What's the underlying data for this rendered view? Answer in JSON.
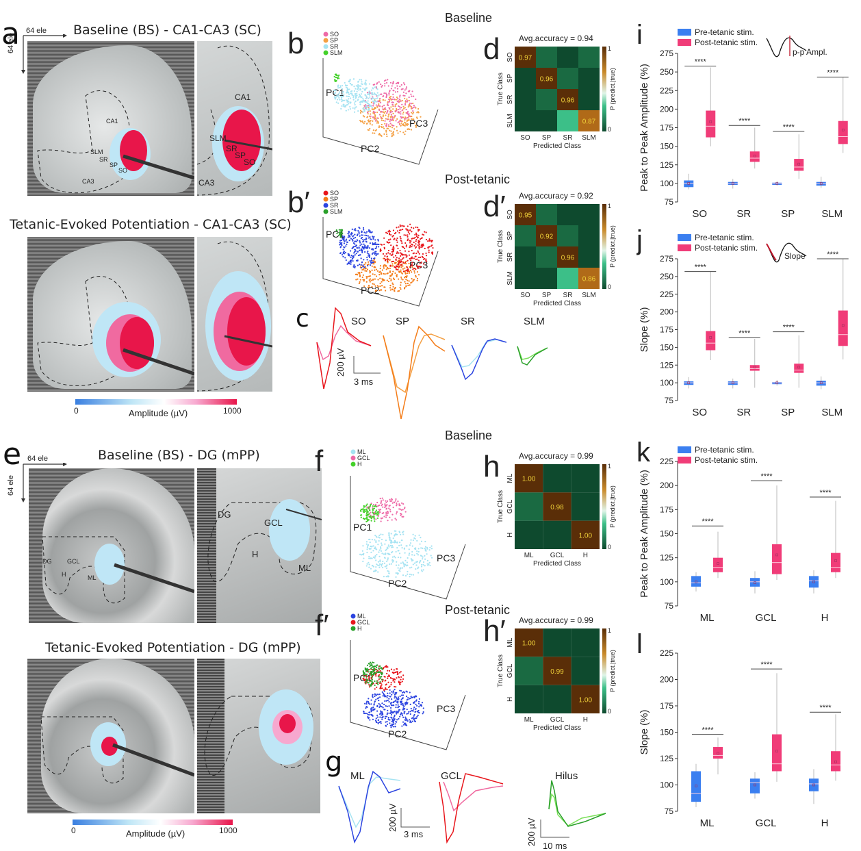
{
  "panels": {
    "a": {
      "label": "a",
      "title_top": "Baseline (BS) - CA1-CA3 (SC)",
      "title_bottom": "Tetanic-Evoked Potentiation - CA1-CA3 (SC)",
      "axis_h": "64 ele",
      "axis_v": "64 ele",
      "regions_left": [
        "CA1",
        "SLM",
        "SR",
        "SP",
        "SO",
        "CA3"
      ],
      "regions_right": [
        "CA1",
        "SLM",
        "SR",
        "SP",
        "SO",
        "CA3"
      ],
      "colorbar": {
        "min": "0",
        "max": "1000",
        "label": "Amplitude (µV)",
        "colors": [
          "#3a7fe0",
          "#bfe6f6",
          "#ffffff",
          "#f7a8cf",
          "#e8164a"
        ]
      }
    },
    "e": {
      "label": "e",
      "title_top": "Baseline (BS) - DG (mPP)",
      "title_bottom": "Tetanic-Evoked Potentiation - DG (mPP)",
      "axis_h": "64 ele",
      "axis_v": "64 ele",
      "regions": [
        "DG",
        "GCL",
        "H",
        "ML"
      ],
      "colorbar": {
        "min": "0",
        "max": "1000",
        "label": "Amplitude (µV)"
      }
    },
    "section_baseline": "Baseline",
    "section_post": "Post-tetanic",
    "section_baseline_dg": "Baseline",
    "section_post_dg": "Post-tetanic",
    "b": {
      "label": "b",
      "axes": [
        "PC1",
        "PC2",
        "PC3"
      ],
      "legend": [
        {
          "name": "SO",
          "color": "#ee6aa7"
        },
        {
          "name": "SP",
          "color": "#f4a044"
        },
        {
          "name": "SR",
          "color": "#a6e3f2"
        },
        {
          "name": "SLM",
          "color": "#44d12a"
        }
      ]
    },
    "b_prime": {
      "label": "b′",
      "axes": [
        "PC1",
        "PC2",
        "PC3"
      ],
      "legend": [
        {
          "name": "SO",
          "color": "#e8161c"
        },
        {
          "name": "SP",
          "color": "#f47c18"
        },
        {
          "name": "SR",
          "color": "#2c44e0"
        },
        {
          "name": "SLM",
          "color": "#2aa02a"
        }
      ]
    },
    "f": {
      "label": "f",
      "axes": [
        "PC1",
        "PC2",
        "PC3"
      ],
      "legend": [
        {
          "name": "ML",
          "color": "#a6e3f2"
        },
        {
          "name": "GCL",
          "color": "#ee6aa7"
        },
        {
          "name": "H",
          "color": "#44d12a"
        }
      ]
    },
    "f_prime": {
      "label": "f′",
      "axes": [
        "PC1",
        "PC2",
        "PC3"
      ],
      "legend": [
        {
          "name": "ML",
          "color": "#2c44e0"
        },
        {
          "name": "GCL",
          "color": "#e8161c"
        },
        {
          "name": "H",
          "color": "#2aa02a"
        }
      ]
    },
    "c": {
      "label": "c",
      "traces": [
        "SO",
        "SP",
        "SR",
        "SLM"
      ],
      "scale_v": "200 µV",
      "scale_h": "3 ms"
    },
    "g": {
      "label": "g",
      "traces": [
        "ML",
        "GCL",
        "Hilus"
      ],
      "scale1_v": "200 µV",
      "scale1_h": "3 ms",
      "scale2_v": "200 µV",
      "scale2_h": "10 ms"
    },
    "inset_i": "p-p Ampl.",
    "inset_j": "Slope"
  },
  "chart_data": [
    {
      "id": "d",
      "label": "d",
      "type": "heatmap",
      "title": "Avg.accuracy = 0.94",
      "xlabel": "Predicted Class",
      "ylabel": "True Class",
      "colorbar_label": "P (predict.|true)",
      "colorbar_ticks": [
        "0",
        "1"
      ],
      "categories": [
        "SO",
        "SP",
        "SR",
        "SLM"
      ],
      "matrix": [
        [
          0.97,
          0.02,
          0.0,
          0.01
        ],
        [
          0.0,
          0.96,
          0.04,
          0.0
        ],
        [
          0.0,
          0.04,
          0.96,
          0.0
        ],
        [
          0.0,
          0.0,
          0.13,
          0.87
        ]
      ],
      "annotations": [
        "0.97",
        "0.96",
        "0.96",
        "0.87"
      ]
    },
    {
      "id": "d_prime",
      "label": "d′",
      "type": "heatmap",
      "title": "Avg.accuracy = 0.92",
      "xlabel": "Predicted Class",
      "ylabel": "True Class",
      "colorbar_label": "P (predict.|true)",
      "colorbar_ticks": [
        "0",
        "1"
      ],
      "categories": [
        "SO",
        "SP",
        "SR",
        "SLM"
      ],
      "matrix": [
        [
          0.95,
          0.05,
          0.0,
          0.0
        ],
        [
          0.04,
          0.92,
          0.04,
          0.0
        ],
        [
          0.0,
          0.04,
          0.96,
          0.0
        ],
        [
          0.0,
          0.0,
          0.14,
          0.86
        ]
      ],
      "annotations": [
        "0.95",
        "0.92",
        "0.96",
        "0.86"
      ]
    },
    {
      "id": "h",
      "label": "h",
      "type": "heatmap",
      "title": "Avg.accuracy = 0.99",
      "xlabel": "Predicted Class",
      "ylabel": "True Class",
      "colorbar_label": "P (predict.|true)",
      "colorbar_ticks": [
        "0",
        "1"
      ],
      "categories": [
        "ML",
        "GCL",
        "H"
      ],
      "matrix": [
        [
          1.0,
          0.0,
          0.0
        ],
        [
          0.02,
          0.98,
          0.0
        ],
        [
          0.0,
          0.0,
          1.0
        ]
      ],
      "annotations": [
        "1.00",
        "0.98",
        "1.00"
      ]
    },
    {
      "id": "h_prime",
      "label": "h′",
      "type": "heatmap",
      "title": "Avg.accuracy = 0.99",
      "xlabel": "Predicted Class",
      "ylabel": "True Class",
      "colorbar_label": "P (predict.|true)",
      "colorbar_ticks": [
        "0",
        "1"
      ],
      "categories": [
        "ML",
        "GCL",
        "H"
      ],
      "matrix": [
        [
          1.0,
          0.0,
          0.0
        ],
        [
          0.01,
          0.99,
          0.0
        ],
        [
          0.0,
          0.0,
          1.0
        ]
      ],
      "annotations": [
        "1.00",
        "0.99",
        "1.00"
      ]
    },
    {
      "id": "i",
      "label": "i",
      "type": "box",
      "ylabel": "Peak to Peak Amplitude (%)",
      "ylim": [
        75,
        275
      ],
      "yticks": [
        75,
        100,
        125,
        150,
        175,
        200,
        225,
        250,
        275
      ],
      "categories": [
        "SO",
        "SR",
        "SP",
        "SLM"
      ],
      "legend": [
        {
          "name": "Pre-tetanic stim.",
          "color": "#3b7ff0"
        },
        {
          "name": "Post-tetanic stim.",
          "color": "#f03c78"
        }
      ],
      "significance": "****",
      "series": [
        {
          "name": "Pre-tetanic stim.",
          "boxes": [
            {
              "min": 92,
              "q1": 95,
              "median": 100,
              "q3": 104,
              "max": 113,
              "mean": 100
            },
            {
              "min": 93,
              "q1": 98,
              "median": 100,
              "q3": 102,
              "max": 106,
              "mean": 100
            },
            {
              "min": 97,
              "q1": 98,
              "median": 100,
              "q3": 101,
              "max": 103,
              "mean": 100
            },
            {
              "min": 94,
              "q1": 97,
              "median": 100,
              "q3": 102,
              "max": 109,
              "mean": 100
            }
          ]
        },
        {
          "name": "Post-tetanic stim.",
          "boxes": [
            {
              "min": 150,
              "q1": 162,
              "median": 177,
              "q3": 198,
              "max": 256,
              "mean": 183
            },
            {
              "min": 120,
              "q1": 129,
              "median": 134,
              "q3": 143,
              "max": 175,
              "mean": 137
            },
            {
              "min": 106,
              "q1": 117,
              "median": 122,
              "q3": 133,
              "max": 166,
              "mean": 126
            },
            {
              "min": 141,
              "q1": 153,
              "median": 163,
              "q3": 184,
              "max": 243,
              "mean": 172
            }
          ]
        }
      ],
      "sig_y": [
        258,
        178,
        170,
        243
      ]
    },
    {
      "id": "j",
      "label": "j",
      "type": "box",
      "ylabel": "Slope (%)",
      "ylim": [
        75,
        275
      ],
      "yticks": [
        75,
        100,
        125,
        150,
        175,
        200,
        225,
        250,
        275
      ],
      "categories": [
        "SO",
        "SR",
        "SP",
        "SLM"
      ],
      "legend": [
        {
          "name": "Pre-tetanic stim.",
          "color": "#3b7ff0"
        },
        {
          "name": "Post-tetanic stim.",
          "color": "#f03c78"
        }
      ],
      "significance": "****",
      "series": [
        {
          "name": "Pre-tetanic stim.",
          "boxes": [
            {
              "min": 92,
              "q1": 97,
              "median": 100,
              "q3": 102,
              "max": 108,
              "mean": 100
            },
            {
              "min": 92,
              "q1": 97,
              "median": 100,
              "q3": 102,
              "max": 106,
              "mean": 100
            },
            {
              "min": 96,
              "q1": 98,
              "median": 100,
              "q3": 101,
              "max": 104,
              "mean": 100
            },
            {
              "min": 91,
              "q1": 96,
              "median": 100,
              "q3": 103,
              "max": 109,
              "mean": 100
            }
          ]
        },
        {
          "name": "Post-tetanic stim.",
          "boxes": [
            {
              "min": 132,
              "q1": 146,
              "median": 156,
              "q3": 173,
              "max": 257,
              "mean": 164
            },
            {
              "min": 93,
              "q1": 117,
              "median": 120,
              "q3": 125,
              "max": 162,
              "mean": 122
            },
            {
              "min": 93,
              "q1": 114,
              "median": 118,
              "q3": 127,
              "max": 167,
              "mean": 122
            },
            {
              "min": 133,
              "q1": 152,
              "median": 168,
              "q3": 202,
              "max": 275,
              "mean": 181
            }
          ]
        }
      ],
      "sig_y": [
        257,
        164,
        172,
        275
      ]
    },
    {
      "id": "k",
      "label": "k",
      "type": "box",
      "ylabel": "Peak to Peak Amplitude (%)",
      "ylim": [
        75,
        225
      ],
      "yticks": [
        75,
        100,
        125,
        150,
        175,
        200,
        225
      ],
      "categories": [
        "ML",
        "GCL",
        "H"
      ],
      "legend": [
        {
          "name": "Pre-tetanic stim.",
          "color": "#3b7ff0"
        },
        {
          "name": "Post-tetanic stim.",
          "color": "#f03c78"
        }
      ],
      "significance": "****",
      "series": [
        {
          "name": "Pre-tetanic stim.",
          "boxes": [
            {
              "min": 90,
              "q1": 95,
              "median": 99,
              "q3": 106,
              "max": 110,
              "mean": 100
            },
            {
              "min": 88,
              "q1": 95,
              "median": 100,
              "q3": 104,
              "max": 111,
              "mean": 99
            },
            {
              "min": 88,
              "q1": 94,
              "median": 101,
              "q3": 106,
              "max": 112,
              "mean": 100
            }
          ]
        },
        {
          "name": "Post-tetanic stim.",
          "boxes": [
            {
              "min": 104,
              "q1": 110,
              "median": 115,
              "q3": 125,
              "max": 152,
              "mean": 119
            },
            {
              "min": 102,
              "q1": 108,
              "median": 120,
              "q3": 139,
              "max": 200,
              "mean": 128
            },
            {
              "min": 104,
              "q1": 110,
              "median": 115,
              "q3": 130,
              "max": 184,
              "mean": 122
            }
          ]
        }
      ],
      "sig_y": [
        158,
        205,
        188
      ]
    },
    {
      "id": "l",
      "label": "l",
      "type": "box",
      "ylabel": "Slope (%)",
      "ylim": [
        75,
        225
      ],
      "yticks": [
        75,
        100,
        125,
        150,
        175,
        200,
        225
      ],
      "categories": [
        "ML",
        "GCL",
        "H"
      ],
      "legend": [],
      "significance": "****",
      "series": [
        {
          "name": "Pre-tetanic stim.",
          "boxes": [
            {
              "min": 79,
              "q1": 84,
              "median": 92,
              "q3": 113,
              "max": 120,
              "mean": 99
            },
            {
              "min": 87,
              "q1": 92,
              "median": 102,
              "q3": 106,
              "max": 112,
              "mean": 100
            },
            {
              "min": 82,
              "q1": 94,
              "median": 101,
              "q3": 106,
              "max": 115,
              "mean": 100
            }
          ]
        },
        {
          "name": "Post-tetanic stim.",
          "boxes": [
            {
              "min": 110,
              "q1": 125,
              "median": 128,
              "q3": 136,
              "max": 145,
              "mean": 130
            },
            {
              "min": 103,
              "q1": 113,
              "median": 120,
              "q3": 148,
              "max": 206,
              "mean": 132
            },
            {
              "min": 104,
              "q1": 113,
              "median": 119,
              "q3": 132,
              "max": 167,
              "mean": 122
            }
          ]
        }
      ],
      "sig_y": [
        148,
        210,
        169
      ]
    }
  ]
}
